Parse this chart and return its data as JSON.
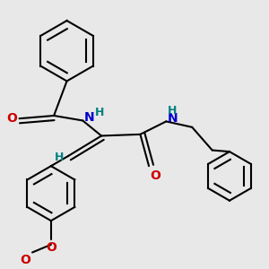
{
  "bg_color": "#e8e8e8",
  "bond_color": "#000000",
  "atom_colors": {
    "O": "#cc0000",
    "N": "#0000cc",
    "H": "#008080",
    "C": "#000000"
  },
  "line_width": 1.5,
  "font_size_atom": 10,
  "font_size_H": 9
}
